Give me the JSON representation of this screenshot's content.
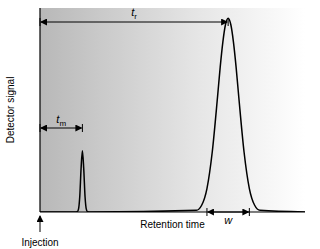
{
  "chart_data": {
    "type": "line",
    "xlabel": "Retention time",
    "ylabel": "Detector signal",
    "xlim": [
      0,
      100
    ],
    "ylim": [
      0,
      100
    ],
    "tick_labels": false,
    "color": "#000000",
    "x": [
      0,
      13,
      14,
      14.5,
      15,
      15.5,
      16,
      16.5,
      17,
      17.5,
      18,
      19,
      59,
      61,
      63,
      65,
      67,
      68,
      69,
      70,
      71,
      72,
      73,
      74,
      75,
      77,
      79,
      81,
      83,
      100
    ],
    "values": [
      0,
      0,
      0.1,
      1.3,
      7.5,
      21.3,
      30,
      21.3,
      7.5,
      1.3,
      0.1,
      0,
      0.8,
      3.3,
      11.5,
      29.4,
      56.5,
      71,
      83.3,
      91.9,
      95,
      91.9,
      83.3,
      71,
      56.5,
      29.4,
      11.5,
      3.3,
      0.8,
      0
    ],
    "annotations": [
      {
        "text": "tm",
        "x": [
          0,
          16
        ]
      },
      {
        "text": "tr",
        "x": [
          0,
          71
        ]
      },
      {
        "text": "w",
        "x": [
          63,
          79
        ]
      },
      {
        "text": "Injection",
        "x": 0
      }
    ]
  }
}
